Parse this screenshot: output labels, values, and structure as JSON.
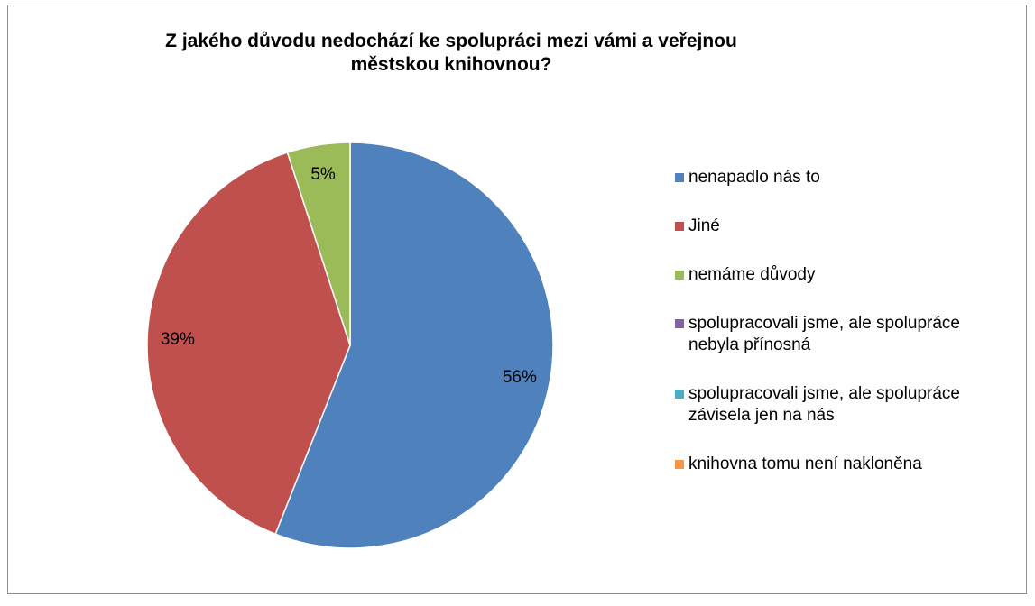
{
  "chart_data": {
    "type": "pie",
    "title": "Z jakého důvodu nedochází ke spolupráci mezi vámi a veřejnou městskou knihovnou?",
    "categories": [
      "nenapadlo nás to",
      "Jiné",
      "nemáme důvody",
      "spolupracovali jsme, ale spolupráce nebyla přínosná",
      "spolupracovali jsme, ale spolupráce závisela jen na nás",
      "knihovna tomu není nakloněna"
    ],
    "values": [
      56,
      39,
      5,
      0,
      0,
      0
    ],
    "value_labels": [
      "56%",
      "39%",
      "5%",
      null,
      null,
      null
    ],
    "colors": [
      "#4f81bd",
      "#c0504d",
      "#9bbb59",
      "#8064a2",
      "#4bacc6",
      "#f79646"
    ],
    "legend": "right"
  }
}
